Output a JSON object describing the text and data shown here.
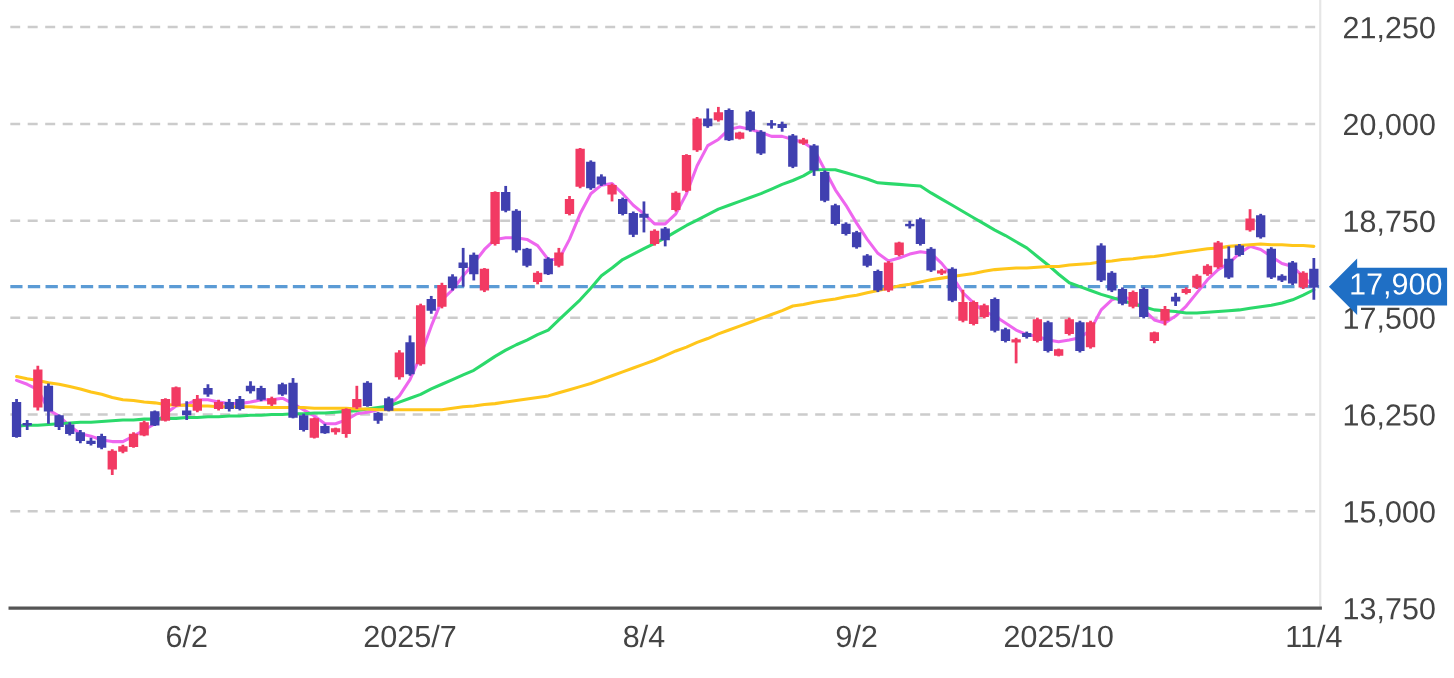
{
  "chart_data": {
    "type": "candlestick",
    "categories": [
      null,
      null,
      null,
      null,
      null,
      null,
      null,
      null,
      null,
      null,
      null,
      null,
      null,
      null,
      null,
      null,
      "6/2",
      null,
      null,
      null,
      null,
      null,
      null,
      null,
      null,
      null,
      null,
      null,
      null,
      null,
      null,
      null,
      null,
      null,
      null,
      null,
      null,
      "2025/7",
      null,
      null,
      null,
      null,
      null,
      null,
      null,
      null,
      null,
      null,
      null,
      null,
      null,
      null,
      null,
      null,
      null,
      null,
      null,
      null,
      null,
      "8/4",
      null,
      null,
      null,
      null,
      null,
      null,
      null,
      null,
      null,
      null,
      null,
      null,
      null,
      null,
      null,
      null,
      null,
      null,
      null,
      "9/2",
      null,
      null,
      null,
      null,
      null,
      null,
      null,
      null,
      null,
      null,
      null,
      null,
      null,
      null,
      null,
      null,
      null,
      null,
      "2025/10",
      null,
      null,
      null,
      null,
      null,
      null,
      null,
      null,
      null,
      null,
      null,
      null,
      null,
      null,
      null,
      null,
      null,
      null,
      null,
      null,
      null,
      null,
      null,
      "11/4"
    ],
    "ohlc": [
      [
        16400,
        16450,
        15950,
        15970
      ],
      [
        16130,
        16180,
        16050,
        16120
      ],
      [
        16350,
        16880,
        16300,
        16820
      ],
      [
        16610,
        16650,
        16130,
        16300
      ],
      [
        16230,
        16250,
        16050,
        16100
      ],
      [
        16110,
        16150,
        15980,
        16010
      ],
      [
        16010,
        16050,
        15880,
        15920
      ],
      [
        15900,
        15950,
        15850,
        15880
      ],
      [
        15960,
        16000,
        15800,
        15830
      ],
      [
        15550,
        15800,
        15470,
        15770
      ],
      [
        15780,
        15860,
        15750,
        15830
      ],
      [
        15840,
        16020,
        15820,
        15990
      ],
      [
        15990,
        16170,
        15970,
        16140
      ],
      [
        16280,
        16300,
        16100,
        16120
      ],
      [
        16180,
        16460,
        16160,
        16440
      ],
      [
        16370,
        16610,
        16350,
        16590
      ],
      [
        16290,
        16420,
        16180,
        16250
      ],
      [
        16310,
        16500,
        16280,
        16440
      ],
      [
        16580,
        16640,
        16480,
        16520
      ],
      [
        16330,
        16440,
        16300,
        16400
      ],
      [
        16400,
        16450,
        16290,
        16330
      ],
      [
        16440,
        16490,
        16300,
        16330
      ],
      [
        16610,
        16680,
        16520,
        16560
      ],
      [
        16580,
        16620,
        16420,
        16450
      ],
      [
        16390,
        16480,
        16360,
        16450
      ],
      [
        16630,
        16660,
        16490,
        16520
      ],
      [
        16650,
        16720,
        16200,
        16220
      ],
      [
        16230,
        16260,
        16030,
        16060
      ],
      [
        15960,
        16210,
        15940,
        16190
      ],
      [
        16090,
        16130,
        16000,
        16020
      ],
      [
        16030,
        16080,
        15990,
        16060
      ],
      [
        16010,
        16330,
        15950,
        16310
      ],
      [
        16350,
        16620,
        16320,
        16440
      ],
      [
        16650,
        16680,
        16350,
        16370
      ],
      [
        16260,
        16280,
        16130,
        16180
      ],
      [
        16450,
        16480,
        16290,
        16310
      ],
      [
        16740,
        17080,
        16700,
        17040
      ],
      [
        17170,
        17270,
        16750,
        16780
      ],
      [
        16910,
        17680,
        16880,
        17650
      ],
      [
        17730,
        17780,
        17550,
        17600
      ],
      [
        17650,
        17950,
        17620,
        17910
      ],
      [
        18020,
        18060,
        17850,
        17890
      ],
      [
        18200,
        18400,
        17900,
        18150
      ],
      [
        18300,
        18340,
        17980,
        18070
      ],
      [
        17860,
        18140,
        17830,
        18120
      ],
      [
        18460,
        19130,
        18430,
        19110
      ],
      [
        19110,
        19200,
        18860,
        18890
      ],
      [
        18870,
        18900,
        18340,
        18380
      ],
      [
        18380,
        18400,
        18150,
        18180
      ],
      [
        17970,
        18100,
        17930,
        18070
      ],
      [
        18250,
        18280,
        18050,
        18070
      ],
      [
        18180,
        18400,
        18150,
        18330
      ],
      [
        18850,
        19070,
        18820,
        19020
      ],
      [
        19200,
        19690,
        19170,
        19670
      ],
      [
        19500,
        19530,
        19150,
        19180
      ],
      [
        19310,
        19350,
        19200,
        19230
      ],
      [
        19100,
        19230,
        19000,
        19200
      ],
      [
        19020,
        19050,
        18820,
        18850
      ],
      [
        18840,
        18870,
        18540,
        18580
      ],
      [
        18830,
        19000,
        18600,
        18800
      ],
      [
        18460,
        18640,
        18430,
        18610
      ],
      [
        18640,
        18670,
        18420,
        18510
      ],
      [
        18900,
        19130,
        18870,
        19100
      ],
      [
        19150,
        19610,
        19120,
        19590
      ],
      [
        19670,
        20090,
        19640,
        20060
      ],
      [
        20060,
        20200,
        19950,
        19980
      ],
      [
        20060,
        20220,
        20030,
        20140
      ],
      [
        20170,
        20200,
        19780,
        19800
      ],
      [
        19820,
        19900,
        19800,
        19880
      ],
      [
        20150,
        20180,
        19900,
        19930
      ],
      [
        19890,
        19920,
        19600,
        19630
      ],
      [
        20000,
        20050,
        19940,
        19990
      ],
      [
        19990,
        20030,
        19900,
        19960
      ],
      [
        19840,
        19870,
        19430,
        19460
      ],
      [
        19760,
        19820,
        19730,
        19790
      ],
      [
        19710,
        19740,
        19330,
        19410
      ],
      [
        19370,
        19400,
        18990,
        19020
      ],
      [
        18940,
        18970,
        18690,
        18720
      ],
      [
        18700,
        18730,
        18560,
        18590
      ],
      [
        18590,
        18620,
        18390,
        18420
      ],
      [
        18290,
        18320,
        18150,
        18180
      ],
      [
        18090,
        18120,
        17830,
        17860
      ],
      [
        17860,
        18230,
        17830,
        18200
      ],
      [
        18320,
        18480,
        18290,
        18460
      ],
      [
        18700,
        18750,
        18650,
        18690
      ],
      [
        18760,
        18790,
        18430,
        18460
      ],
      [
        18380,
        18410,
        18090,
        18120
      ],
      [
        18080,
        18130,
        18050,
        18100
      ],
      [
        18120,
        18150,
        17700,
        17730
      ],
      [
        17470,
        17860,
        17440,
        17690
      ],
      [
        17430,
        17720,
        17400,
        17690
      ],
      [
        17520,
        17680,
        17490,
        17650
      ],
      [
        17730,
        17760,
        17310,
        17340
      ],
      [
        17340,
        17370,
        17180,
        17210
      ],
      [
        17190,
        17240,
        16910,
        17210
      ],
      [
        17290,
        17320,
        17230,
        17260
      ],
      [
        17210,
        17500,
        17180,
        17470
      ],
      [
        17430,
        17460,
        17050,
        17080
      ],
      [
        17020,
        17100,
        17000,
        17080
      ],
      [
        17300,
        17500,
        17270,
        17470
      ],
      [
        17430,
        17460,
        17050,
        17080
      ],
      [
        17130,
        17460,
        17100,
        17430
      ],
      [
        18420,
        18460,
        17960,
        17990
      ],
      [
        18070,
        18100,
        17830,
        17860
      ],
      [
        17860,
        17890,
        17660,
        17690
      ],
      [
        17650,
        17850,
        17620,
        17820
      ],
      [
        17860,
        17890,
        17490,
        17520
      ],
      [
        17210,
        17320,
        17170,
        17300
      ],
      [
        17470,
        17650,
        17400,
        17600
      ],
      [
        17760,
        17820,
        17650,
        17720
      ],
      [
        17830,
        17890,
        17800,
        17860
      ],
      [
        17900,
        18060,
        17870,
        18030
      ],
      [
        18070,
        18190,
        18040,
        18160
      ],
      [
        18160,
        18490,
        18130,
        18460
      ],
      [
        18250,
        18420,
        18000,
        18030
      ],
      [
        18420,
        18450,
        18290,
        18320
      ],
      [
        18640,
        18900,
        18610,
        18770
      ],
      [
        18810,
        18840,
        18520,
        18550
      ],
      [
        18380,
        18410,
        18000,
        18030
      ],
      [
        18030,
        18060,
        17960,
        17990
      ],
      [
        18200,
        18230,
        17920,
        17950
      ],
      [
        17900,
        18100,
        17870,
        18070
      ],
      [
        18120,
        18270,
        17730,
        17900
      ]
    ],
    "colors": [
      "#4040b0",
      "#4040b0",
      "#f23a63",
      "#4040b0",
      "#4040b0",
      "#4040b0",
      "#4040b0",
      "#4040b0",
      "#4040b0",
      "#f23a63",
      "#f23a63",
      "#f23a63",
      "#f23a63",
      "#4040b0",
      "#f23a63",
      "#f23a63",
      "#4040b0",
      "#f23a63",
      "#4040b0",
      "#f23a63",
      "#4040b0",
      "#4040b0",
      "#4040b0",
      "#4040b0",
      "#f23a63",
      "#4040b0",
      "#4040b0",
      "#4040b0",
      "#f23a63",
      "#4040b0",
      "#f23a63",
      "#f23a63",
      "#f23a63",
      "#4040b0",
      "#4040b0",
      "#4040b0",
      "#f23a63",
      "#4040b0",
      "#f23a63",
      "#4040b0",
      "#f23a63",
      "#4040b0",
      "#4040b0",
      "#4040b0",
      "#f23a63",
      "#f23a63",
      "#4040b0",
      "#4040b0",
      "#4040b0",
      "#f23a63",
      "#4040b0",
      "#f23a63",
      "#f23a63",
      "#f23a63",
      "#4040b0",
      "#4040b0",
      "#f23a63",
      "#4040b0",
      "#4040b0",
      "#4040b0",
      "#f23a63",
      "#4040b0",
      "#f23a63",
      "#f23a63",
      "#f23a63",
      "#4040b0",
      "#f23a63",
      "#4040b0",
      "#f23a63",
      "#4040b0",
      "#4040b0",
      "#4040b0",
      "#4040b0",
      "#4040b0",
      "#f23a63",
      "#4040b0",
      "#4040b0",
      "#4040b0",
      "#4040b0",
      "#4040b0",
      "#4040b0",
      "#4040b0",
      "#f23a63",
      "#f23a63",
      "#4040b0",
      "#4040b0",
      "#4040b0",
      "#f23a63",
      "#4040b0",
      "#f23a63",
      "#f23a63",
      "#f23a63",
      "#4040b0",
      "#4040b0",
      "#f23a63",
      "#4040b0",
      "#f23a63",
      "#4040b0",
      "#f23a63",
      "#f23a63",
      "#4040b0",
      "#f23a63",
      "#4040b0",
      "#4040b0",
      "#4040b0",
      "#f23a63",
      "#4040b0",
      "#f23a63",
      "#f23a63",
      "#4040b0",
      "#f23a63",
      "#f23a63",
      "#f23a63",
      "#f23a63",
      "#4040b0",
      "#4040b0",
      "#f23a63",
      "#4040b0",
      "#4040b0",
      "#4040b0",
      "#4040b0",
      "#f23a63",
      "#4040b0"
    ],
    "series": [
      {
        "type": "line",
        "color": "#ee66ee",
        "values": [
          16690,
          16640,
          16570,
          16310,
          16230,
          16100,
          16000,
          15970,
          15920,
          15900,
          15900,
          15970,
          16050,
          16130,
          16260,
          16360,
          16380,
          16440,
          16440,
          16410,
          16390,
          16390,
          16410,
          16440,
          16440,
          16460,
          16390,
          16310,
          16230,
          16130,
          16130,
          16180,
          16260,
          16280,
          16310,
          16360,
          16490,
          16700,
          17010,
          17390,
          17730,
          17860,
          18040,
          18200,
          18380,
          18510,
          18530,
          18530,
          18510,
          18430,
          18250,
          18250,
          18510,
          18840,
          19100,
          19210,
          19230,
          19100,
          18950,
          18840,
          18710,
          18710,
          18840,
          19100,
          19460,
          19720,
          19800,
          19930,
          19960,
          19930,
          19890,
          19840,
          19840,
          19800,
          19760,
          19670,
          19410,
          19150,
          18950,
          18720,
          18510,
          18330,
          18230,
          18270,
          18320,
          18350,
          18330,
          18200,
          18030,
          17820,
          17690,
          17580,
          17520,
          17430,
          17340,
          17280,
          17260,
          17210,
          17190,
          17210,
          17240,
          17340,
          17600,
          17730,
          17770,
          17730,
          17600,
          17470,
          17430,
          17520,
          17650,
          17820,
          17990,
          18120,
          18200,
          18330,
          18420,
          18380,
          18290,
          18200,
          18160,
          18030,
          17900
        ]
      },
      {
        "type": "line",
        "color": "#2bd96b",
        "values": [
          16100,
          16110,
          16110,
          16120,
          16130,
          16140,
          16150,
          16150,
          16160,
          16170,
          16180,
          16180,
          16190,
          16190,
          16200,
          16200,
          16210,
          16210,
          16220,
          16220,
          16230,
          16230,
          16240,
          16240,
          16250,
          16250,
          16260,
          16260,
          16270,
          16270,
          16280,
          16290,
          16300,
          16320,
          16340,
          16360,
          16410,
          16460,
          16510,
          16580,
          16640,
          16700,
          16760,
          16820,
          16910,
          17000,
          17080,
          17150,
          17210,
          17280,
          17340,
          17470,
          17600,
          17730,
          17880,
          18040,
          18140,
          18250,
          18320,
          18390,
          18460,
          18530,
          18610,
          18690,
          18760,
          18830,
          18900,
          18950,
          19000,
          19050,
          19100,
          19160,
          19220,
          19270,
          19330,
          19410,
          19410,
          19410,
          19370,
          19330,
          19290,
          19240,
          19230,
          19220,
          19210,
          19200,
          19110,
          19030,
          18950,
          18870,
          18790,
          18710,
          18630,
          18560,
          18480,
          18400,
          18290,
          18180,
          18060,
          17950,
          17900,
          17850,
          17800,
          17760,
          17720,
          17680,
          17640,
          17600,
          17590,
          17580,
          17560,
          17560,
          17570,
          17580,
          17590,
          17600,
          17620,
          17640,
          17660,
          17690,
          17730,
          17790,
          17860
        ]
      },
      {
        "type": "line",
        "color": "#ffc61a",
        "values": [
          16740,
          16710,
          16690,
          16660,
          16640,
          16610,
          16580,
          16540,
          16510,
          16470,
          16440,
          16430,
          16410,
          16400,
          16380,
          16370,
          16370,
          16360,
          16360,
          16350,
          16350,
          16350,
          16350,
          16340,
          16340,
          16340,
          16340,
          16340,
          16330,
          16330,
          16330,
          16330,
          16320,
          16320,
          16310,
          16310,
          16310,
          16310,
          16310,
          16310,
          16310,
          16330,
          16350,
          16360,
          16380,
          16390,
          16410,
          16430,
          16450,
          16470,
          16490,
          16530,
          16570,
          16610,
          16650,
          16700,
          16750,
          16800,
          16850,
          16900,
          16950,
          17010,
          17070,
          17120,
          17180,
          17230,
          17290,
          17340,
          17390,
          17440,
          17490,
          17540,
          17590,
          17650,
          17670,
          17700,
          17720,
          17740,
          17770,
          17790,
          17820,
          17850,
          17880,
          17910,
          17930,
          17960,
          17990,
          18010,
          18030,
          18050,
          18070,
          18100,
          18120,
          18130,
          18140,
          18140,
          18150,
          18160,
          18160,
          18180,
          18190,
          18200,
          18220,
          18230,
          18250,
          18260,
          18280,
          18290,
          18310,
          18330,
          18350,
          18370,
          18390,
          18400,
          18420,
          18430,
          18440,
          18450,
          18440,
          18440,
          18430,
          18430,
          18420
        ]
      }
    ],
    "ylim": [
      13750,
      21600
    ],
    "yticks": [
      {
        "value": 13750,
        "label": "13,750"
      },
      {
        "value": 15000,
        "label": "15,000"
      },
      {
        "value": 16250,
        "label": "16,250"
      },
      {
        "value": 17500,
        "label": "17,500"
      },
      {
        "value": 18750,
        "label": "18,750"
      },
      {
        "value": 20000,
        "label": "20,000"
      },
      {
        "value": 21250,
        "label": "21,250"
      }
    ],
    "ref_lines": [
      {
        "axis": "y",
        "value": 17900,
        "label": "17,900",
        "color": "#5b9bd5",
        "line_style": "dashed"
      }
    ],
    "grid": "y"
  }
}
